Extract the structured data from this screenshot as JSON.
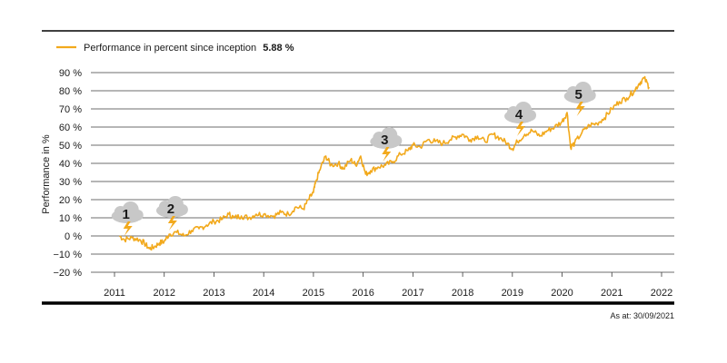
{
  "legend": {
    "label": "Performance in percent since inception",
    "value": "5.88 %"
  },
  "as_at": "As at: 30/09/2021",
  "colors": {
    "line": "#f2a91c",
    "cloud": "#c8c8c8",
    "grid": "#3c3c3c",
    "frame": "#000000"
  },
  "chart_data": {
    "type": "line",
    "ylabel": "Performance in %",
    "xlabel": "",
    "ylim": [
      -20,
      90
    ],
    "xlim": [
      2011,
      2022
    ],
    "y_ticks": [
      90,
      80,
      70,
      60,
      50,
      40,
      30,
      20,
      10,
      0,
      -10,
      -20
    ],
    "y_tick_labels": [
      "90 %",
      "80 %",
      "70 %",
      "60 %",
      "50 %",
      "40 %",
      "30 %",
      "20 %",
      "10 %",
      "0 %",
      "−10 %",
      "−20 %"
    ],
    "x_ticks": [
      "2011",
      "2012",
      "2013",
      "2014",
      "2015",
      "2016",
      "2017",
      "2018",
      "2019",
      "2020",
      "2021",
      "2022"
    ],
    "grid": true,
    "legend_position": "top-left",
    "series": [
      {
        "name": "Performance in percent since inception",
        "points": [
          [
            2011.1,
            0
          ],
          [
            2011.2,
            -2
          ],
          [
            2011.35,
            -1
          ],
          [
            2011.5,
            -2
          ],
          [
            2011.6,
            -4
          ],
          [
            2011.7,
            -7
          ],
          [
            2011.8,
            -6
          ],
          [
            2011.9,
            -4
          ],
          [
            2012.0,
            -3
          ],
          [
            2012.1,
            1
          ],
          [
            2012.25,
            2
          ],
          [
            2012.4,
            0
          ],
          [
            2012.55,
            3
          ],
          [
            2012.7,
            4
          ],
          [
            2012.85,
            6
          ],
          [
            2013.0,
            8
          ],
          [
            2013.15,
            9
          ],
          [
            2013.3,
            12
          ],
          [
            2013.4,
            10
          ],
          [
            2013.55,
            11
          ],
          [
            2013.7,
            10
          ],
          [
            2013.85,
            12
          ],
          [
            2014.0,
            12
          ],
          [
            2014.2,
            11
          ],
          [
            2014.35,
            13
          ],
          [
            2014.5,
            12
          ],
          [
            2014.65,
            16
          ],
          [
            2014.8,
            15
          ],
          [
            2014.9,
            20
          ],
          [
            2015.0,
            24
          ],
          [
            2015.05,
            30
          ],
          [
            2015.15,
            38
          ],
          [
            2015.25,
            44
          ],
          [
            2015.35,
            39
          ],
          [
            2015.5,
            40
          ],
          [
            2015.6,
            37
          ],
          [
            2015.75,
            42
          ],
          [
            2015.85,
            39
          ],
          [
            2015.95,
            44
          ],
          [
            2016.05,
            34
          ],
          [
            2016.15,
            36
          ],
          [
            2016.3,
            38
          ],
          [
            2016.45,
            39
          ],
          [
            2016.6,
            41
          ],
          [
            2016.75,
            45
          ],
          [
            2016.9,
            47
          ],
          [
            2017.0,
            50
          ],
          [
            2017.15,
            49
          ],
          [
            2017.3,
            53
          ],
          [
            2017.45,
            52
          ],
          [
            2017.6,
            51
          ],
          [
            2017.75,
            53
          ],
          [
            2017.9,
            55
          ],
          [
            2018.0,
            56
          ],
          [
            2018.15,
            53
          ],
          [
            2018.3,
            55
          ],
          [
            2018.45,
            52
          ],
          [
            2018.6,
            56
          ],
          [
            2018.75,
            54
          ],
          [
            2018.9,
            51
          ],
          [
            2019.0,
            48
          ],
          [
            2019.1,
            52
          ],
          [
            2019.25,
            56
          ],
          [
            2019.4,
            58
          ],
          [
            2019.55,
            55
          ],
          [
            2019.7,
            58
          ],
          [
            2019.85,
            60
          ],
          [
            2020.0,
            63
          ],
          [
            2020.1,
            68
          ],
          [
            2020.17,
            49
          ],
          [
            2020.25,
            51
          ],
          [
            2020.4,
            57
          ],
          [
            2020.55,
            61
          ],
          [
            2020.7,
            62
          ],
          [
            2020.85,
            65
          ],
          [
            2021.0,
            70
          ],
          [
            2021.15,
            74
          ],
          [
            2021.3,
            76
          ],
          [
            2021.45,
            80
          ],
          [
            2021.55,
            84
          ],
          [
            2021.65,
            87
          ],
          [
            2021.75,
            82
          ]
        ]
      }
    ],
    "annotations": [
      {
        "label": "1",
        "x": 2011.25,
        "y": 11
      },
      {
        "label": "2",
        "x": 2012.15,
        "y": 14
      },
      {
        "label": "3",
        "x": 2016.45,
        "y": 52
      },
      {
        "label": "4",
        "x": 2019.15,
        "y": 66
      },
      {
        "label": "5",
        "x": 2020.35,
        "y": 77
      }
    ]
  }
}
